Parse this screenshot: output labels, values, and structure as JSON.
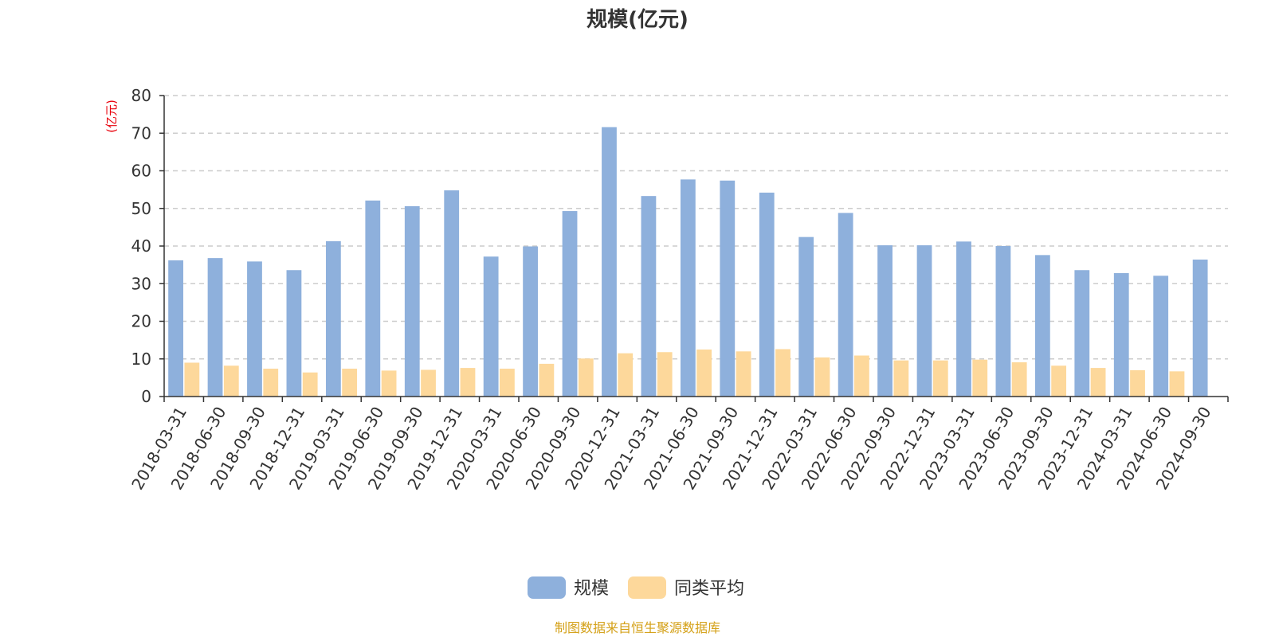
{
  "chart_data": {
    "type": "bar",
    "title": "规模(亿元)",
    "ylabel": "(亿元)",
    "ylim": [
      0,
      80
    ],
    "yticks": [
      0,
      10,
      20,
      30,
      40,
      50,
      60,
      70,
      80
    ],
    "grid": true,
    "legend_position": "bottom",
    "categories": [
      "2018-03-31",
      "2018-06-30",
      "2018-09-30",
      "2018-12-31",
      "2019-03-31",
      "2019-06-30",
      "2019-09-30",
      "2019-12-31",
      "2020-03-31",
      "2020-06-30",
      "2020-09-30",
      "2020-12-31",
      "2021-03-31",
      "2021-06-30",
      "2021-09-30",
      "2021-12-31",
      "2022-03-31",
      "2022-06-30",
      "2022-09-30",
      "2022-12-31",
      "2023-03-31",
      "2023-06-30",
      "2023-09-30",
      "2023-12-31",
      "2024-03-31",
      "2024-06-30",
      "2024-09-30"
    ],
    "series": [
      {
        "name": "规模",
        "color": "#8eb0dc",
        "values": [
          36.2,
          36.8,
          35.9,
          33.6,
          41.3,
          52.1,
          50.6,
          54.8,
          37.2,
          39.9,
          49.3,
          71.6,
          53.3,
          57.7,
          57.4,
          54.2,
          42.4,
          48.8,
          40.2,
          40.2,
          41.2,
          40.0,
          37.6,
          33.6,
          32.8,
          32.1,
          36.4
        ]
      },
      {
        "name": "同类平均",
        "color": "#fdd89b",
        "values": [
          9.0,
          8.2,
          7.4,
          6.4,
          7.4,
          6.9,
          7.1,
          7.6,
          7.4,
          8.7,
          10.1,
          11.5,
          11.8,
          12.5,
          12.0,
          12.6,
          10.4,
          10.9,
          9.6,
          9.6,
          9.8,
          9.1,
          8.2,
          7.6,
          7.0,
          6.7,
          null
        ]
      }
    ]
  },
  "colors": {
    "axis": "#333333",
    "grid": "#cccccc",
    "ylabel": "#e8000b",
    "source": "#d4a017"
  },
  "source_text": "制图数据来自恒生聚源数据库"
}
